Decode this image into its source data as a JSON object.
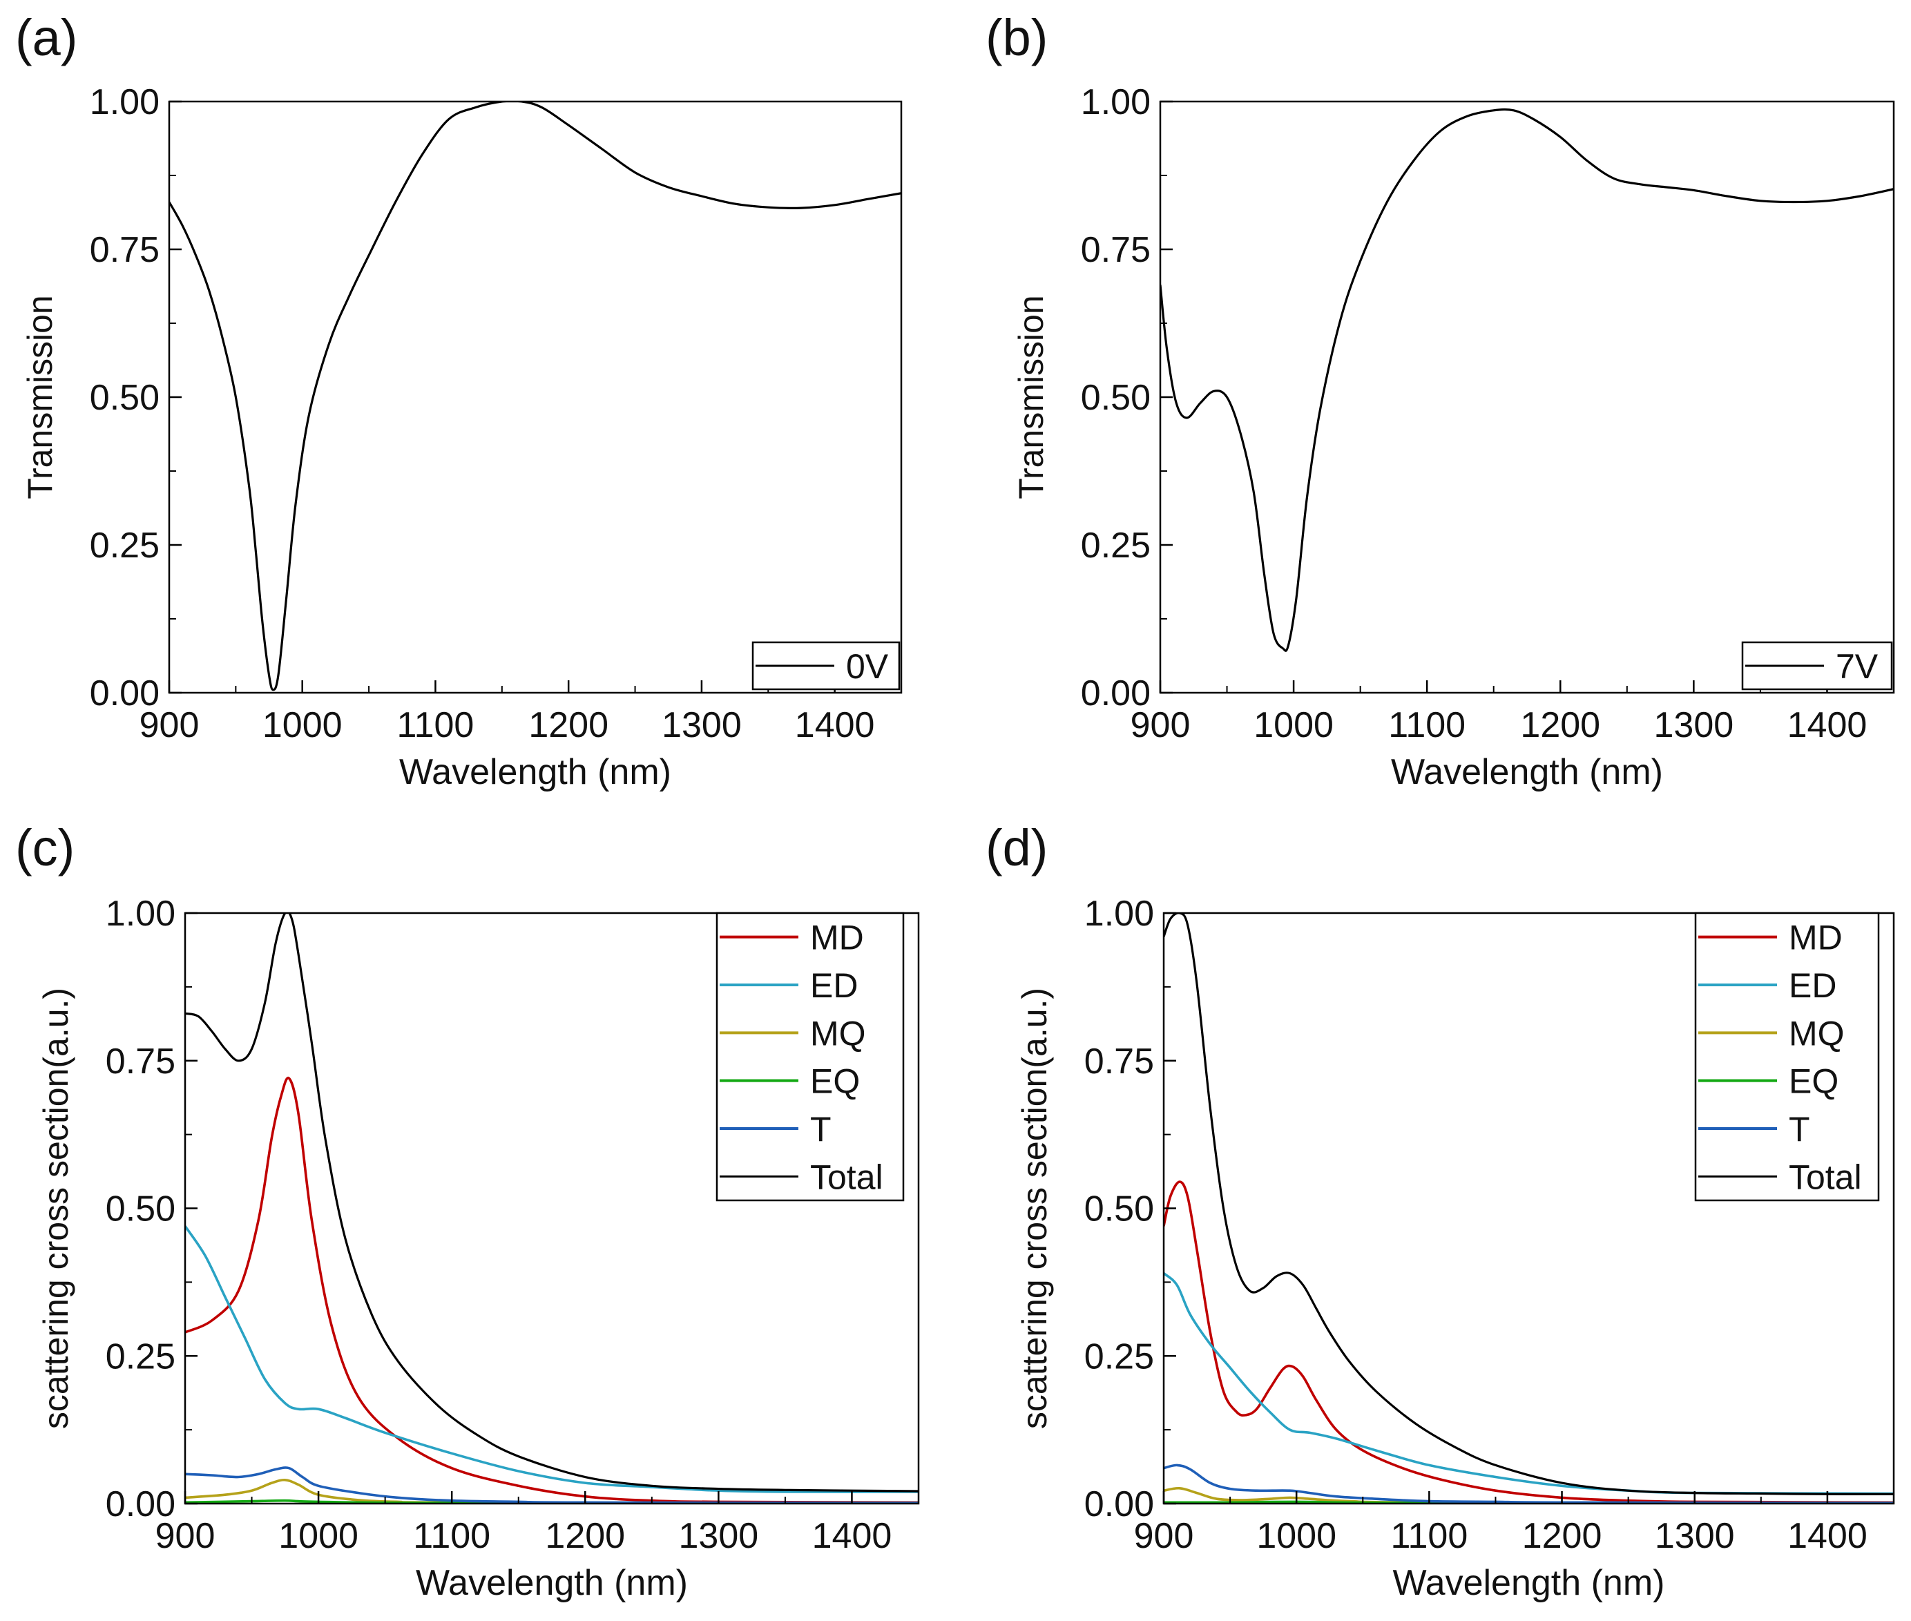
{
  "figure": {
    "panels": [
      "(a)",
      "(b)",
      "(c)",
      "(d)"
    ]
  },
  "colors": {
    "MD": "#c00000",
    "ED": "#2aa3c4",
    "MQ": "#b5a21a",
    "EQ": "#12a812",
    "T": "#1f5fb8",
    "Total": "#000000",
    "transmission": "#000000"
  },
  "chart_data": [
    {
      "panel": "(a)",
      "type": "line",
      "xlabel": "Wavelength (nm)",
      "ylabel": "Transmission",
      "xlim": [
        900,
        1450
      ],
      "ylim": [
        0,
        1
      ],
      "xticks": [
        "900",
        "1000",
        "1100",
        "1200",
        "1300",
        "1400"
      ],
      "yticks": [
        "0.00",
        "0.25",
        "0.50",
        "0.75",
        "1.00"
      ],
      "legend_position": "bottom-right",
      "series": [
        {
          "name": "0V",
          "color_key": "transmission",
          "x": [
            900,
            910,
            920,
            930,
            940,
            950,
            960,
            965,
            970,
            975,
            978,
            982,
            988,
            995,
            1005,
            1020,
            1035,
            1050,
            1070,
            1090,
            1110,
            1130,
            1150,
            1165,
            1180,
            1200,
            1225,
            1250,
            1275,
            1300,
            1325,
            1350,
            1375,
            1400,
            1425,
            1450
          ],
          "y": [
            0.83,
            0.79,
            0.74,
            0.68,
            0.6,
            0.5,
            0.35,
            0.24,
            0.12,
            0.03,
            0.005,
            0.03,
            0.16,
            0.32,
            0.47,
            0.59,
            0.67,
            0.74,
            0.83,
            0.91,
            0.97,
            0.99,
            1.0,
            1.0,
            0.99,
            0.96,
            0.92,
            0.88,
            0.855,
            0.84,
            0.827,
            0.821,
            0.82,
            0.825,
            0.835,
            0.845
          ]
        }
      ]
    },
    {
      "panel": "(b)",
      "type": "line",
      "xlabel": "Wavelength (nm)",
      "ylabel": "Transmission",
      "xlim": [
        900,
        1450
      ],
      "ylim": [
        0,
        1
      ],
      "xticks": [
        "900",
        "1000",
        "1100",
        "1200",
        "1300",
        "1400"
      ],
      "yticks": [
        "0.00",
        "0.25",
        "0.50",
        "0.75",
        "1.00"
      ],
      "legend_position": "bottom-right",
      "series": [
        {
          "name": "7V",
          "color_key": "transmission",
          "x": [
            900,
            905,
            912,
            920,
            930,
            940,
            950,
            960,
            970,
            978,
            985,
            992,
            996,
            1002,
            1010,
            1020,
            1035,
            1050,
            1070,
            1090,
            1110,
            1130,
            1150,
            1165,
            1180,
            1200,
            1220,
            1240,
            1260,
            1280,
            1300,
            1325,
            1350,
            1375,
            1400,
            1425,
            1450
          ],
          "y": [
            0.69,
            0.58,
            0.49,
            0.465,
            0.49,
            0.51,
            0.5,
            0.44,
            0.34,
            0.2,
            0.1,
            0.075,
            0.08,
            0.16,
            0.33,
            0.48,
            0.63,
            0.73,
            0.83,
            0.9,
            0.95,
            0.975,
            0.985,
            0.985,
            0.97,
            0.94,
            0.9,
            0.87,
            0.86,
            0.855,
            0.85,
            0.84,
            0.832,
            0.83,
            0.832,
            0.84,
            0.852
          ]
        }
      ]
    },
    {
      "panel": "(c)",
      "type": "line",
      "xlabel": "Wavelength (nm)",
      "ylabel": "scattering cross section(a.u.)",
      "xlim": [
        900,
        1450
      ],
      "ylim": [
        0,
        1
      ],
      "xticks": [
        "900",
        "1000",
        "1100",
        "1200",
        "1300",
        "1400"
      ],
      "yticks": [
        "0.00",
        "0.25",
        "0.50",
        "0.75",
        "1.00"
      ],
      "legend_position": "top-right",
      "series": [
        {
          "name": "MD",
          "color_key": "MD",
          "x": [
            900,
            920,
            940,
            955,
            965,
            972,
            978,
            985,
            995,
            1010,
            1030,
            1060,
            1100,
            1150,
            1200,
            1250,
            1300,
            1450
          ],
          "y": [
            0.29,
            0.31,
            0.36,
            0.48,
            0.62,
            0.69,
            0.72,
            0.66,
            0.48,
            0.3,
            0.18,
            0.11,
            0.06,
            0.03,
            0.012,
            0.005,
            0.003,
            0.002
          ]
        },
        {
          "name": "ED",
          "color_key": "ED",
          "x": [
            900,
            915,
            930,
            945,
            960,
            975,
            985,
            1000,
            1020,
            1050,
            1100,
            1150,
            1200,
            1250,
            1300,
            1350,
            1450
          ],
          "y": [
            0.47,
            0.42,
            0.35,
            0.28,
            0.21,
            0.17,
            0.16,
            0.16,
            0.145,
            0.12,
            0.085,
            0.055,
            0.035,
            0.028,
            0.022,
            0.02,
            0.02
          ]
        },
        {
          "name": "MQ",
          "color_key": "MQ",
          "x": [
            900,
            930,
            950,
            965,
            975,
            985,
            1000,
            1030,
            1060,
            1100,
            1450
          ],
          "y": [
            0.01,
            0.015,
            0.022,
            0.035,
            0.04,
            0.032,
            0.015,
            0.006,
            0.003,
            0.002,
            0.001
          ]
        },
        {
          "name": "EQ",
          "color_key": "EQ",
          "x": [
            900,
            950,
            975,
            1000,
            1100,
            1450
          ],
          "y": [
            0.002,
            0.004,
            0.005,
            0.003,
            0.001,
            0.0005
          ]
        },
        {
          "name": "T",
          "color_key": "T",
          "x": [
            900,
            920,
            940,
            955,
            968,
            978,
            988,
            1000,
            1030,
            1060,
            1100,
            1150,
            1200,
            1450
          ],
          "y": [
            0.05,
            0.048,
            0.045,
            0.05,
            0.058,
            0.06,
            0.045,
            0.03,
            0.018,
            0.01,
            0.005,
            0.003,
            0.002,
            0.001
          ]
        },
        {
          "name": "Total",
          "color_key": "Total",
          "x": [
            900,
            910,
            920,
            930,
            940,
            950,
            960,
            968,
            975,
            980,
            985,
            995,
            1005,
            1020,
            1040,
            1060,
            1090,
            1120,
            1150,
            1200,
            1250,
            1300,
            1350,
            1400,
            1450
          ],
          "y": [
            0.83,
            0.825,
            0.8,
            0.77,
            0.75,
            0.77,
            0.85,
            0.95,
            1.0,
            0.99,
            0.93,
            0.78,
            0.62,
            0.45,
            0.32,
            0.24,
            0.165,
            0.115,
            0.08,
            0.045,
            0.03,
            0.025,
            0.023,
            0.022,
            0.021
          ]
        }
      ]
    },
    {
      "panel": "(d)",
      "type": "line",
      "xlabel": "Wavelength (nm)",
      "ylabel": "scattering cross section(a.u.)",
      "xlim": [
        900,
        1450
      ],
      "ylim": [
        0,
        1
      ],
      "xticks": [
        "900",
        "1000",
        "1100",
        "1200",
        "1300",
        "1400"
      ],
      "yticks": [
        "0.00",
        "0.25",
        "0.50",
        "0.75",
        "1.00"
      ],
      "legend_position": "top-right",
      "series": [
        {
          "name": "MD",
          "color_key": "MD",
          "x": [
            900,
            905,
            912,
            918,
            925,
            935,
            945,
            955,
            962,
            970,
            980,
            990,
            997,
            1005,
            1015,
            1030,
            1050,
            1080,
            1110,
            1150,
            1200,
            1250,
            1300,
            1450
          ],
          "y": [
            0.47,
            0.52,
            0.545,
            0.52,
            0.43,
            0.29,
            0.19,
            0.155,
            0.15,
            0.16,
            0.195,
            0.228,
            0.232,
            0.215,
            0.175,
            0.125,
            0.09,
            0.06,
            0.04,
            0.022,
            0.01,
            0.005,
            0.003,
            0.002
          ]
        },
        {
          "name": "ED",
          "color_key": "ED",
          "x": [
            900,
            910,
            920,
            935,
            950,
            965,
            980,
            995,
            1010,
            1030,
            1060,
            1100,
            1150,
            1200,
            1250,
            1300,
            1450
          ],
          "y": [
            0.39,
            0.37,
            0.32,
            0.27,
            0.23,
            0.19,
            0.155,
            0.125,
            0.12,
            0.11,
            0.09,
            0.065,
            0.045,
            0.03,
            0.022,
            0.018,
            0.017
          ]
        },
        {
          "name": "MQ",
          "color_key": "MQ",
          "x": [
            900,
            912,
            925,
            940,
            960,
            980,
            995,
            1010,
            1040,
            1100,
            1450
          ],
          "y": [
            0.022,
            0.026,
            0.018,
            0.008,
            0.006,
            0.008,
            0.01,
            0.008,
            0.004,
            0.002,
            0.001
          ]
        },
        {
          "name": "EQ",
          "color_key": "EQ",
          "x": [
            900,
            950,
            1000,
            1100,
            1450
          ],
          "y": [
            0.002,
            0.002,
            0.003,
            0.001,
            0.0005
          ]
        },
        {
          "name": "T",
          "color_key": "T",
          "x": [
            900,
            910,
            920,
            935,
            950,
            970,
            995,
            1010,
            1030,
            1060,
            1100,
            1150,
            1200,
            1450
          ],
          "y": [
            0.06,
            0.065,
            0.058,
            0.035,
            0.025,
            0.022,
            0.022,
            0.018,
            0.012,
            0.008,
            0.004,
            0.003,
            0.002,
            0.001
          ]
        },
        {
          "name": "Total",
          "color_key": "Total",
          "x": [
            900,
            905,
            912,
            918,
            925,
            935,
            945,
            955,
            965,
            975,
            985,
            995,
            1005,
            1015,
            1025,
            1040,
            1060,
            1090,
            1120,
            1150,
            1200,
            1250,
            1300,
            1350,
            1400,
            1450
          ],
          "y": [
            0.96,
            0.99,
            1.0,
            0.98,
            0.88,
            0.67,
            0.5,
            0.4,
            0.36,
            0.365,
            0.385,
            0.39,
            0.37,
            0.33,
            0.29,
            0.24,
            0.19,
            0.135,
            0.095,
            0.065,
            0.035,
            0.022,
            0.018,
            0.017,
            0.016,
            0.016
          ]
        }
      ]
    }
  ]
}
